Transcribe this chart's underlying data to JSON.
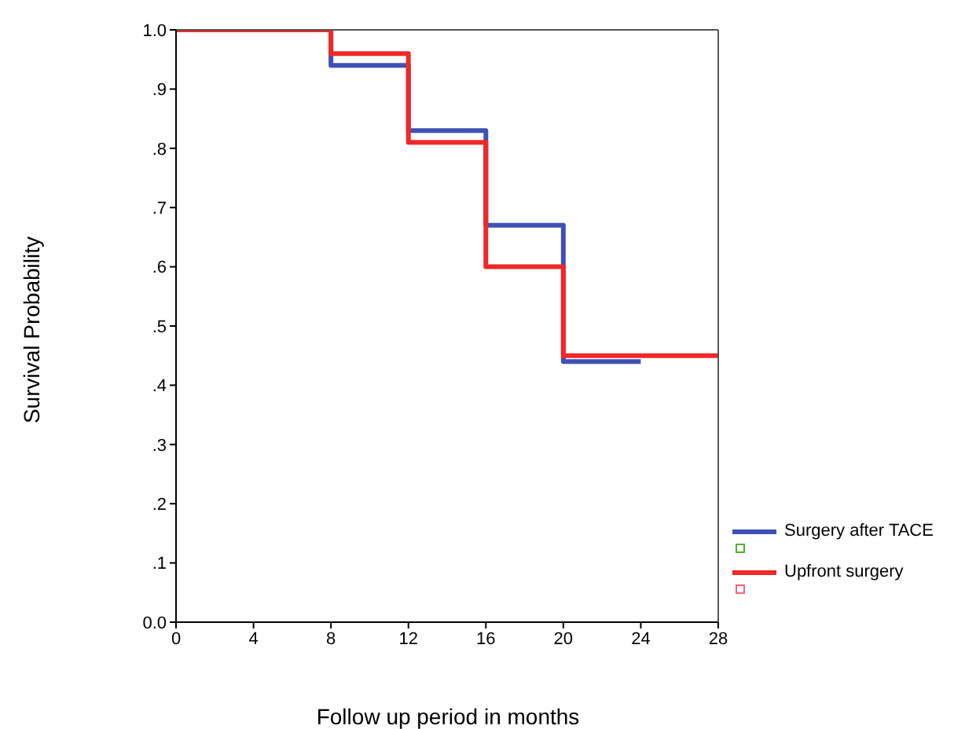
{
  "chart_data": {
    "type": "step",
    "xlabel": "Follow up period in months",
    "ylabel": "Survival Probability",
    "xlim": [
      0,
      28
    ],
    "xticks": [
      0,
      4,
      8,
      12,
      16,
      20,
      24,
      28
    ],
    "ylim": [
      0,
      1
    ],
    "yticks": [
      {
        "value": 0,
        "label": "0.0"
      },
      {
        "value": 0.1,
        "label": ".1"
      },
      {
        "value": 0.2,
        "label": ".2"
      },
      {
        "value": 0.3,
        "label": ".3"
      },
      {
        "value": 0.4,
        "label": ".4"
      },
      {
        "value": 0.5,
        "label": ".5"
      },
      {
        "value": 0.6,
        "label": ".6"
      },
      {
        "value": 0.7,
        "label": ".7"
      },
      {
        "value": 0.8,
        "label": ".8"
      },
      {
        "value": 0.9,
        "label": ".9"
      },
      {
        "value": 1,
        "label": "1.0"
      }
    ],
    "series": [
      {
        "name": "Surgery after TACE",
        "color": "#3f51b5",
        "x": [
          0,
          8,
          12,
          16,
          20,
          24
        ],
        "values": [
          1,
          0.94,
          0.83,
          0.67,
          0.44,
          0.44
        ]
      },
      {
        "name": "Upfront surgery",
        "color": "#f02828",
        "x": [
          0,
          8,
          12,
          16,
          20,
          28
        ],
        "values": [
          1,
          0.96,
          0.81,
          0.6,
          0.45,
          0.45
        ]
      }
    ],
    "legend": "bottom right",
    "marker": "none",
    "line_style": "solid"
  }
}
